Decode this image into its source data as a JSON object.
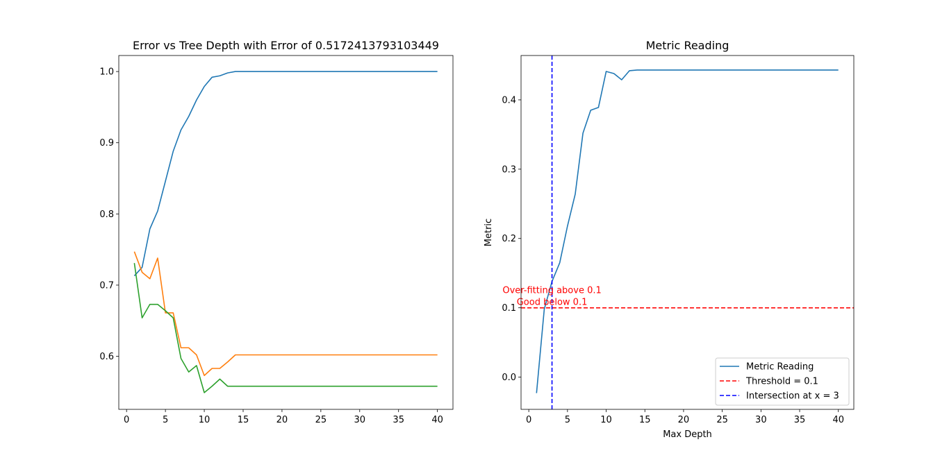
{
  "chart_data": [
    {
      "type": "line",
      "title": "Error vs Tree Depth with Error of 0.5172413793103449",
      "xlabel": "",
      "ylabel": "",
      "xlim": [
        -1,
        42
      ],
      "ylim": [
        0.5255,
        1.0225
      ],
      "xticks": [
        0,
        5,
        10,
        15,
        20,
        25,
        30,
        35,
        40
      ],
      "yticks": [
        0.6,
        0.7,
        0.8,
        0.9,
        1.0
      ],
      "ytick_labels": [
        "0.6",
        "0.7",
        "0.8",
        "0.9",
        "1.0"
      ],
      "series": [
        {
          "color": "#1f77b4",
          "x": [
            1,
            2,
            3,
            4,
            5,
            6,
            7,
            8,
            9,
            10,
            11,
            12,
            13,
            14,
            15,
            16,
            17,
            18,
            19,
            20,
            21,
            22,
            23,
            24,
            25,
            26,
            27,
            28,
            29,
            30,
            31,
            32,
            33,
            34,
            35,
            36,
            37,
            38,
            39,
            40
          ],
          "values": [
            0.713,
            0.725,
            0.779,
            0.804,
            0.846,
            0.888,
            0.918,
            0.937,
            0.96,
            0.979,
            0.992,
            0.994,
            0.998,
            1.0,
            1.0,
            1.0,
            1.0,
            1.0,
            1.0,
            1.0,
            1.0,
            1.0,
            1.0,
            1.0,
            1.0,
            1.0,
            1.0,
            1.0,
            1.0,
            1.0,
            1.0,
            1.0,
            1.0,
            1.0,
            1.0,
            1.0,
            1.0,
            1.0,
            1.0,
            1.0
          ]
        },
        {
          "color": "#ff7f0e",
          "x": [
            1,
            2,
            3,
            4,
            5,
            6,
            7,
            8,
            9,
            10,
            11,
            12,
            13,
            14,
            15,
            16,
            17,
            18,
            19,
            20,
            21,
            22,
            23,
            24,
            25,
            26,
            27,
            28,
            29,
            30,
            31,
            32,
            33,
            34,
            35,
            36,
            37,
            38,
            39,
            40
          ],
          "values": [
            0.747,
            0.718,
            0.709,
            0.738,
            0.661,
            0.661,
            0.612,
            0.612,
            0.602,
            0.573,
            0.583,
            0.583,
            0.592,
            0.602,
            0.602,
            0.602,
            0.602,
            0.602,
            0.602,
            0.602,
            0.602,
            0.602,
            0.602,
            0.602,
            0.602,
            0.602,
            0.602,
            0.602,
            0.602,
            0.602,
            0.602,
            0.602,
            0.602,
            0.602,
            0.602,
            0.602,
            0.602,
            0.602,
            0.602,
            0.602
          ]
        },
        {
          "color": "#2ca02c",
          "x": [
            1,
            2,
            3,
            4,
            5,
            6,
            7,
            8,
            9,
            10,
            11,
            12,
            13,
            14,
            15,
            16,
            17,
            18,
            19,
            20,
            21,
            22,
            23,
            24,
            25,
            26,
            27,
            28,
            29,
            30,
            31,
            32,
            33,
            34,
            35,
            36,
            37,
            38,
            39,
            40
          ],
          "values": [
            0.731,
            0.654,
            0.673,
            0.673,
            0.664,
            0.654,
            0.597,
            0.578,
            0.587,
            0.549,
            0.558,
            0.568,
            0.558,
            0.558,
            0.558,
            0.558,
            0.558,
            0.558,
            0.558,
            0.558,
            0.558,
            0.558,
            0.558,
            0.558,
            0.558,
            0.558,
            0.558,
            0.558,
            0.558,
            0.558,
            0.558,
            0.558,
            0.558,
            0.558,
            0.558,
            0.558,
            0.558,
            0.558,
            0.558,
            0.558
          ]
        }
      ]
    },
    {
      "type": "line",
      "title": "Metric Reading",
      "xlabel": "Max Depth",
      "ylabel": "Metric",
      "xlim": [
        -1,
        42
      ],
      "ylim": [
        -0.0465,
        0.464
      ],
      "xticks": [
        0,
        5,
        10,
        15,
        20,
        25,
        30,
        35,
        40
      ],
      "yticks": [
        0.0,
        0.1,
        0.2,
        0.3,
        0.4
      ],
      "ytick_labels": [
        "0.0",
        "0.1",
        "0.2",
        "0.3",
        "0.4"
      ],
      "legend": "lower-right",
      "series": [
        {
          "name": "Metric Reading",
          "color": "#1f77b4",
          "style": "solid",
          "x": [
            1,
            2,
            3,
            4,
            5,
            6,
            7,
            8,
            9,
            10,
            11,
            12,
            13,
            14,
            15,
            16,
            17,
            18,
            19,
            20,
            21,
            22,
            23,
            24,
            25,
            26,
            27,
            28,
            29,
            30,
            31,
            32,
            33,
            34,
            35,
            36,
            37,
            38,
            39,
            40
          ],
          "values": [
            -0.023,
            0.098,
            0.138,
            0.165,
            0.218,
            0.264,
            0.352,
            0.385,
            0.389,
            0.441,
            0.438,
            0.429,
            0.442,
            0.443,
            0.443,
            0.443,
            0.443,
            0.443,
            0.443,
            0.443,
            0.443,
            0.443,
            0.443,
            0.443,
            0.443,
            0.443,
            0.443,
            0.443,
            0.443,
            0.443,
            0.443,
            0.443,
            0.443,
            0.443,
            0.443,
            0.443,
            0.443,
            0.443,
            0.443,
            0.443
          ]
        }
      ],
      "threshold": {
        "name": "Threshold = 0.1",
        "value": 0.1,
        "color": "#ff0000"
      },
      "intersection": {
        "name": "Intersection at x = 3",
        "value": 3,
        "color": "#0000ff"
      },
      "annotations": [
        {
          "text": "Over-fitting above 0.1",
          "x": 3,
          "y": 0.125,
          "color": "#ff0000"
        },
        {
          "text": "Good below 0.1",
          "x": 3,
          "y": 0.108,
          "color": "#ff0000"
        }
      ]
    }
  ]
}
